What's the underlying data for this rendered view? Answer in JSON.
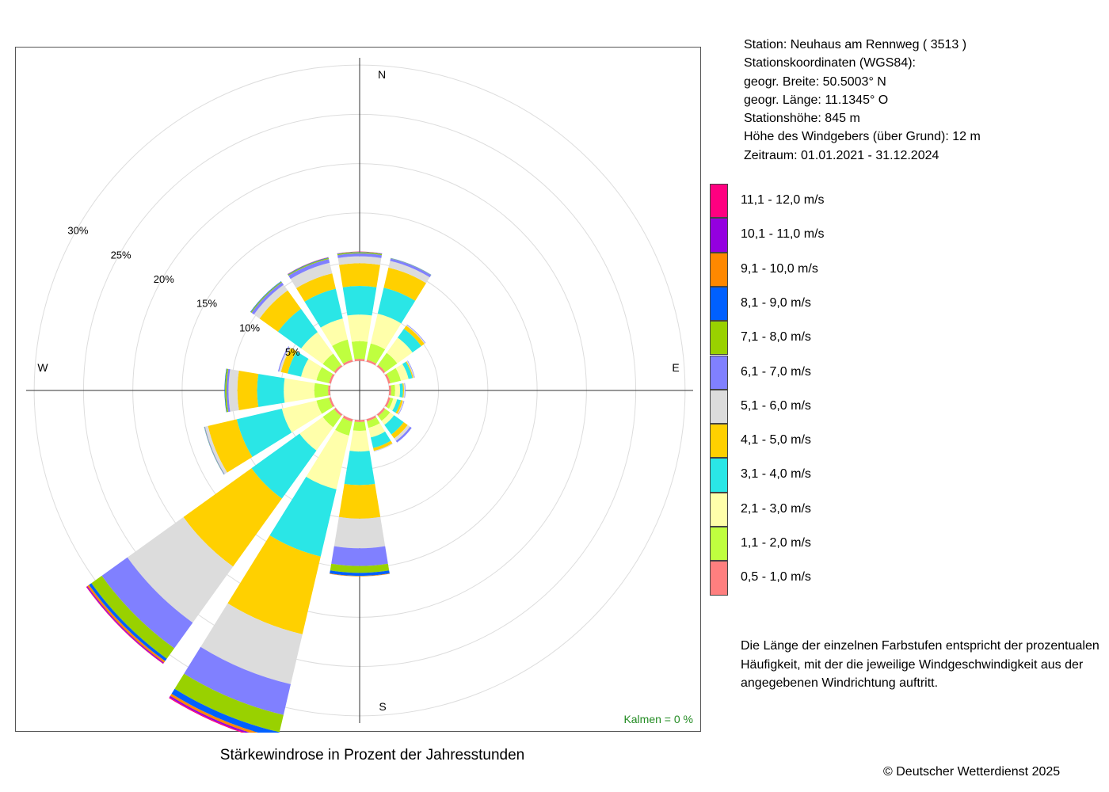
{
  "caption": "Stärkewindrose in Prozent der Jahresstunden",
  "station": {
    "lines": [
      "Station:  Neuhaus am Rennweg  ( 3513 )",
      "Stationskoordinaten (WGS84):",
      "geogr. Breite: 50.5003° N",
      "geogr. Länge: 11.1345° O",
      "Stationshöhe: 845 m",
      "Höhe des Windgebers (über Grund): 12 m",
      "Zeitraum: 01.01.2021 - 31.12.2024"
    ]
  },
  "note": "Die Länge der einzelnen Farbstufen entspricht der prozentualen Häufigkeit, mit der die jeweilige Windgeschwindigkeit aus der angegebenen Windrichtung auftritt.",
  "copyright": "© Deutscher Wetterdienst  2025",
  "chart_data": {
    "type": "windrose",
    "directions": [
      "N",
      "NNE",
      "NE",
      "ENE",
      "E",
      "ESE",
      "SE",
      "SSE",
      "S",
      "SSW",
      "SW",
      "WSW",
      "W",
      "WNW",
      "NW",
      "NNW"
    ],
    "direction_angles_deg": [
      0,
      22.5,
      45,
      67.5,
      90,
      112.5,
      135,
      157.5,
      180,
      202.5,
      225,
      247.5,
      270,
      292.5,
      315,
      337.5
    ],
    "compass_labels": [
      "N",
      "E",
      "S",
      "W"
    ],
    "radial_ticks": [
      5,
      10,
      15,
      20,
      25,
      30
    ],
    "radial_tick_labels": [
      "5%",
      "10%",
      "15%",
      "20%",
      "25%",
      "30%"
    ],
    "radial_max": 30,
    "center_offset_percent": 3.0,
    "speed_classes": [
      {
        "name": "0,5 - 1,0 m/s",
        "color": "#FF7F7F"
      },
      {
        "name": "1,1 - 2,0 m/s",
        "color": "#BFFF3F"
      },
      {
        "name": "2,1 - 3,0 m/s",
        "color": "#FFFFAA"
      },
      {
        "name": "3,1 - 4,0 m/s",
        "color": "#2AE6E6"
      },
      {
        "name": "4,1 - 5,0 m/s",
        "color": "#FFD000"
      },
      {
        "name": "5,1 - 6,0 m/s",
        "color": "#DCDCDC"
      },
      {
        "name": "6,1 - 7,0 m/s",
        "color": "#8080FF"
      },
      {
        "name": "7,1 - 8,0 m/s",
        "color": "#99D100"
      },
      {
        "name": "8,1 - 9,0 m/s",
        "color": "#0060FF"
      },
      {
        "name": "9,1 - 10,0 m/s",
        "color": "#FF8800"
      },
      {
        "name": "10,1 - 11,0 m/s",
        "color": "#9400E0"
      },
      {
        "name": "11,1 - 12,0 m/s",
        "color": "#FF0080"
      }
    ],
    "cumulative_percent": [
      [
        0.2,
        2.0,
        4.7,
        7.6,
        9.9,
        10.6,
        10.9,
        11.0,
        11.05,
        11.07,
        11.08,
        11.09
      ],
      [
        0.2,
        1.9,
        5.0,
        7.7,
        9.8,
        10.5,
        10.75,
        10.78,
        10.8,
        10.8,
        10.8,
        10.8
      ],
      [
        0.2,
        1.7,
        3.6,
        4.7,
        5.1,
        5.2,
        5.25,
        5.25,
        5.25,
        5.25,
        5.25,
        5.25
      ],
      [
        0.2,
        1.3,
        2.1,
        2.5,
        2.6,
        2.7,
        2.75,
        2.75,
        2.75,
        2.75,
        2.75,
        2.75
      ],
      [
        0.2,
        0.6,
        1.1,
        1.4,
        1.5,
        1.6,
        1.65,
        1.65,
        1.65,
        1.65,
        1.65,
        1.65
      ],
      [
        0.2,
        0.5,
        0.9,
        1.3,
        1.5,
        1.6,
        1.65,
        1.65,
        1.65,
        1.65,
        1.65,
        1.65
      ],
      [
        0.2,
        0.8,
        1.3,
        2.5,
        3.0,
        3.3,
        3.5,
        3.5,
        3.5,
        3.5,
        3.5,
        3.5
      ],
      [
        0.2,
        0.9,
        1.9,
        3.0,
        3.3,
        3.35,
        3.37,
        3.37,
        3.37,
        3.37,
        3.37,
        3.37
      ],
      [
        0.2,
        1.1,
        3.2,
        6.6,
        10.0,
        13.0,
        14.8,
        15.5,
        15.8,
        15.85,
        15.85,
        15.85
      ],
      [
        0.25,
        1.7,
        7.3,
        14.3,
        22.4,
        27.6,
        30.8,
        32.6,
        33.2,
        33.45,
        33.6,
        33.7
      ],
      [
        0.2,
        1.6,
        4.5,
        10.5,
        19.0,
        26.0,
        29.2,
        30.5,
        30.8,
        31.0,
        31.1,
        31.15
      ],
      [
        0.2,
        1.5,
        5.1,
        9.8,
        12.8,
        13.1,
        13.15,
        13.18,
        13.2,
        13.2,
        13.2,
        13.2
      ],
      [
        0.2,
        1.6,
        4.7,
        7.4,
        9.4,
        10.3,
        10.5,
        10.65,
        10.7,
        10.7,
        10.7,
        10.7
      ],
      [
        0.2,
        1.5,
        3.1,
        4.5,
        5.2,
        5.4,
        5.5,
        5.5,
        5.5,
        5.5,
        5.5,
        5.5
      ],
      [
        0.2,
        1.6,
        4.3,
        7.2,
        9.5,
        10.2,
        10.5,
        10.6,
        10.65,
        10.65,
        10.65,
        10.65
      ],
      [
        0.2,
        2.3,
        4.5,
        7.6,
        9.2,
        10.3,
        10.7,
        10.8,
        10.85,
        10.87,
        10.88,
        10.89
      ]
    ],
    "calm": {
      "label": "Kalmen  =  0 %",
      "value_percent": 0,
      "color": "#228B22"
    },
    "grid": true
  }
}
